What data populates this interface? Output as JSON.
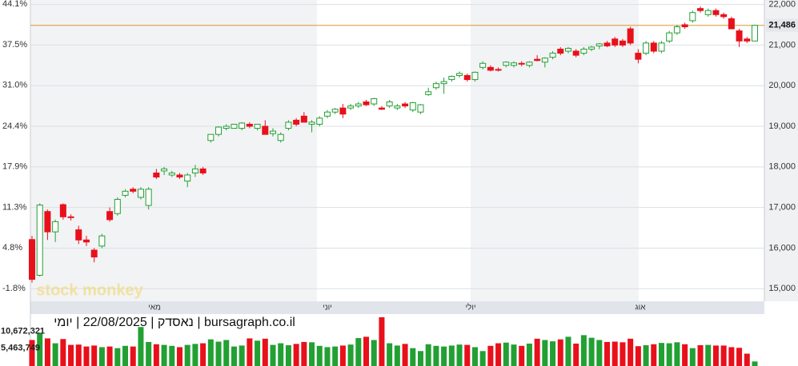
{
  "chart_data": {
    "type": "candlestick",
    "watermark": "stock monkey",
    "caption": "bursagraph.co.il | נאסדק | 22/08/2025 | יומי",
    "month_labels": [
      "מאי",
      "יוני",
      "יולי",
      "אוג"
    ],
    "up_color": "#22a033",
    "down_color": "#e8101b",
    "last_line_color": "#d99a2b",
    "ylim": [
      14690,
      22110
    ],
    "yticks": [
      {
        "value": 22000,
        "label": "22,000"
      },
      {
        "value": 21000,
        "label": "21,000"
      },
      {
        "value": 20000,
        "label": "20,000"
      },
      {
        "value": 19000,
        "label": "19,000"
      },
      {
        "value": 18000,
        "label": "18,000"
      },
      {
        "value": 17000,
        "label": "17,000"
      },
      {
        "value": 16000,
        "label": "16,000"
      },
      {
        "value": 15000,
        "label": "15,000"
      }
    ],
    "y2lim": [
      -3.83,
      44.75
    ],
    "y2ticks": [
      {
        "value": 44.1,
        "label": "44.1%"
      },
      {
        "value": 37.5,
        "label": "37.5%"
      },
      {
        "value": 31.0,
        "label": "31.0%"
      },
      {
        "value": 24.4,
        "label": "24.4%"
      },
      {
        "value": 17.9,
        "label": "17.9%"
      },
      {
        "value": 11.3,
        "label": "11.3%"
      },
      {
        "value": 4.8,
        "label": "4.8%"
      },
      {
        "value": -1.8,
        "label": "-1.8%"
      }
    ],
    "last_price": {
      "value": 21486,
      "label": "21,486"
    },
    "open": [
      16210,
      15330,
      16900,
      16400,
      17070,
      16770,
      16450,
      16200,
      15950,
      16050,
      16900,
      16850,
      17300,
      17450,
      17250,
      17050,
      17850,
      17900,
      17800,
      17800,
      17650,
      17850,
      17950,
      18650,
      18800,
      18950,
      18950,
      18950,
      19050,
      18950,
      19000,
      18820,
      18650,
      18950,
      19150,
      19250,
      19050,
      19050,
      19250,
      19350,
      19450,
      19450,
      19500,
      19600,
      19550,
      19450,
      19500,
      19450,
      19550,
      19400,
      19350,
      19780,
      19950,
      20050,
      20150,
      20250,
      20250,
      20150,
      20450,
      20450,
      20400,
      20500,
      20500,
      20550,
      20500,
      20650,
      20580,
      20700,
      20900,
      20850,
      20850,
      20800,
      20900,
      20980,
      21050,
      21150,
      21100,
      21400,
      20800,
      20800,
      21050,
      20850,
      21100,
      21300,
      21500,
      21600,
      21900,
      21750,
      21850,
      21750,
      21650,
      21350,
      21150,
      21100
    ],
    "high": [
      16300,
      17100,
      16950,
      16700,
      17100,
      16830,
      16550,
      16300,
      16000,
      16350,
      17000,
      17250,
      17450,
      17500,
      17500,
      17500,
      17950,
      18000,
      17900,
      17850,
      17850,
      18050,
      18000,
      18800,
      19000,
      19050,
      19050,
      19100,
      19100,
      19050,
      19150,
      18950,
      18850,
      19150,
      19200,
      19350,
      19150,
      19250,
      19400,
      19450,
      19550,
      19550,
      19600,
      19650,
      19700,
      19500,
      19650,
      19550,
      19600,
      19600,
      19550,
      19950,
      20100,
      20200,
      20250,
      20350,
      20300,
      20350,
      20600,
      20500,
      20450,
      20600,
      20600,
      20600,
      20600,
      20750,
      20700,
      20850,
      20950,
      20950,
      20900,
      20950,
      20980,
      21050,
      21100,
      21200,
      21150,
      21450,
      20900,
      21100,
      21100,
      21100,
      21350,
      21500,
      21550,
      21850,
      21950,
      21900,
      21900,
      21800,
      21700,
      21400,
      21200,
      21500
    ],
    "low": [
      15150,
      15300,
      16200,
      16150,
      16700,
      16680,
      16100,
      16050,
      15650,
      16000,
      16650,
      16800,
      17250,
      17350,
      17200,
      16950,
      17700,
      17800,
      17750,
      17700,
      17500,
      17750,
      17800,
      18600,
      18750,
      18900,
      18950,
      18900,
      18950,
      18900,
      18800,
      18750,
      18600,
      18900,
      19000,
      19100,
      18850,
      19000,
      19200,
      19300,
      19200,
      19400,
      19450,
      19500,
      19500,
      19400,
      19450,
      19400,
      19450,
      19350,
      19300,
      19750,
      19900,
      19800,
      20100,
      20200,
      20100,
      20100,
      20400,
      20350,
      20350,
      20450,
      20450,
      20480,
      20450,
      20600,
      20450,
      20650,
      20750,
      20800,
      20700,
      20750,
      20850,
      20900,
      20950,
      20950,
      20950,
      21000,
      20550,
      20750,
      20800,
      20800,
      21050,
      21250,
      21400,
      21550,
      21800,
      21700,
      21700,
      21650,
      21400,
      20950,
      21050,
      21100
    ],
    "close": [
      15230,
      17060,
      16400,
      16650,
      16770,
      16750,
      16200,
      16150,
      15780,
      16300,
      16700,
      17200,
      17400,
      17400,
      17450,
      17450,
      17750,
      17950,
      17850,
      17750,
      17800,
      17950,
      17850,
      18800,
      18980,
      19000,
      19050,
      19080,
      19000,
      19050,
      18800,
      18880,
      18800,
      19100,
      19050,
      19100,
      19100,
      19200,
      19350,
      19420,
      19300,
      19500,
      19550,
      19530,
      19680,
      19420,
      19600,
      19500,
      19500,
      19580,
      19530,
      19850,
      20050,
      20100,
      20230,
      20300,
      20150,
      20330,
      20550,
      20380,
      20380,
      20580,
      20560,
      20530,
      20580,
      20620,
      20680,
      20800,
      20800,
      20920,
      20750,
      20900,
      20950,
      21030,
      20980,
      21000,
      21000,
      21050,
      20650,
      21050,
      20850,
      21050,
      21300,
      21450,
      21450,
      21800,
      21850,
      21850,
      21750,
      21700,
      21400,
      21100,
      21100,
      21486
    ],
    "vlim": [
      0,
      15500000
    ],
    "vticks": [
      {
        "value": 10672321,
        "label": "10,672,321"
      },
      {
        "value": 5463749,
        "label": "5,463,749"
      }
    ],
    "volume": [
      8000000,
      10200000,
      8500000,
      7000000,
      8300000,
      6500000,
      6600000,
      6000000,
      6300000,
      5800000,
      6000000,
      5500000,
      6200000,
      6000000,
      12000000,
      7400000,
      6700000,
      6500000,
      6200000,
      5800000,
      6500000,
      6800000,
      7000000,
      8200000,
      7500000,
      8000000,
      6000000,
      6300000,
      8500000,
      7800000,
      8400000,
      6500000,
      7000000,
      6400000,
      6800000,
      7400000,
      7300000,
      6200000,
      5800000,
      6000000,
      6300000,
      6600000,
      8600000,
      9000000,
      8000000,
      15000000,
      7000000,
      6300000,
      6800000,
      5500000,
      4600000,
      6700000,
      6200000,
      6000000,
      6300000,
      6600000,
      6500000,
      5800000,
      4600000,
      6200000,
      7000000,
      7200000,
      6600000,
      6200000,
      6900000,
      8400000,
      8000000,
      7600000,
      8200000,
      9000000,
      6900000,
      9500000,
      8700000,
      8000000,
      7400000,
      7500000,
      7300000,
      8400000,
      6100000,
      6400000,
      6700000,
      7100000,
      7000000,
      7300000,
      6700000,
      5500000,
      6400000,
      6500000,
      6300000,
      6300000,
      5800000,
      5600000,
      3800000,
      1400000
    ]
  }
}
